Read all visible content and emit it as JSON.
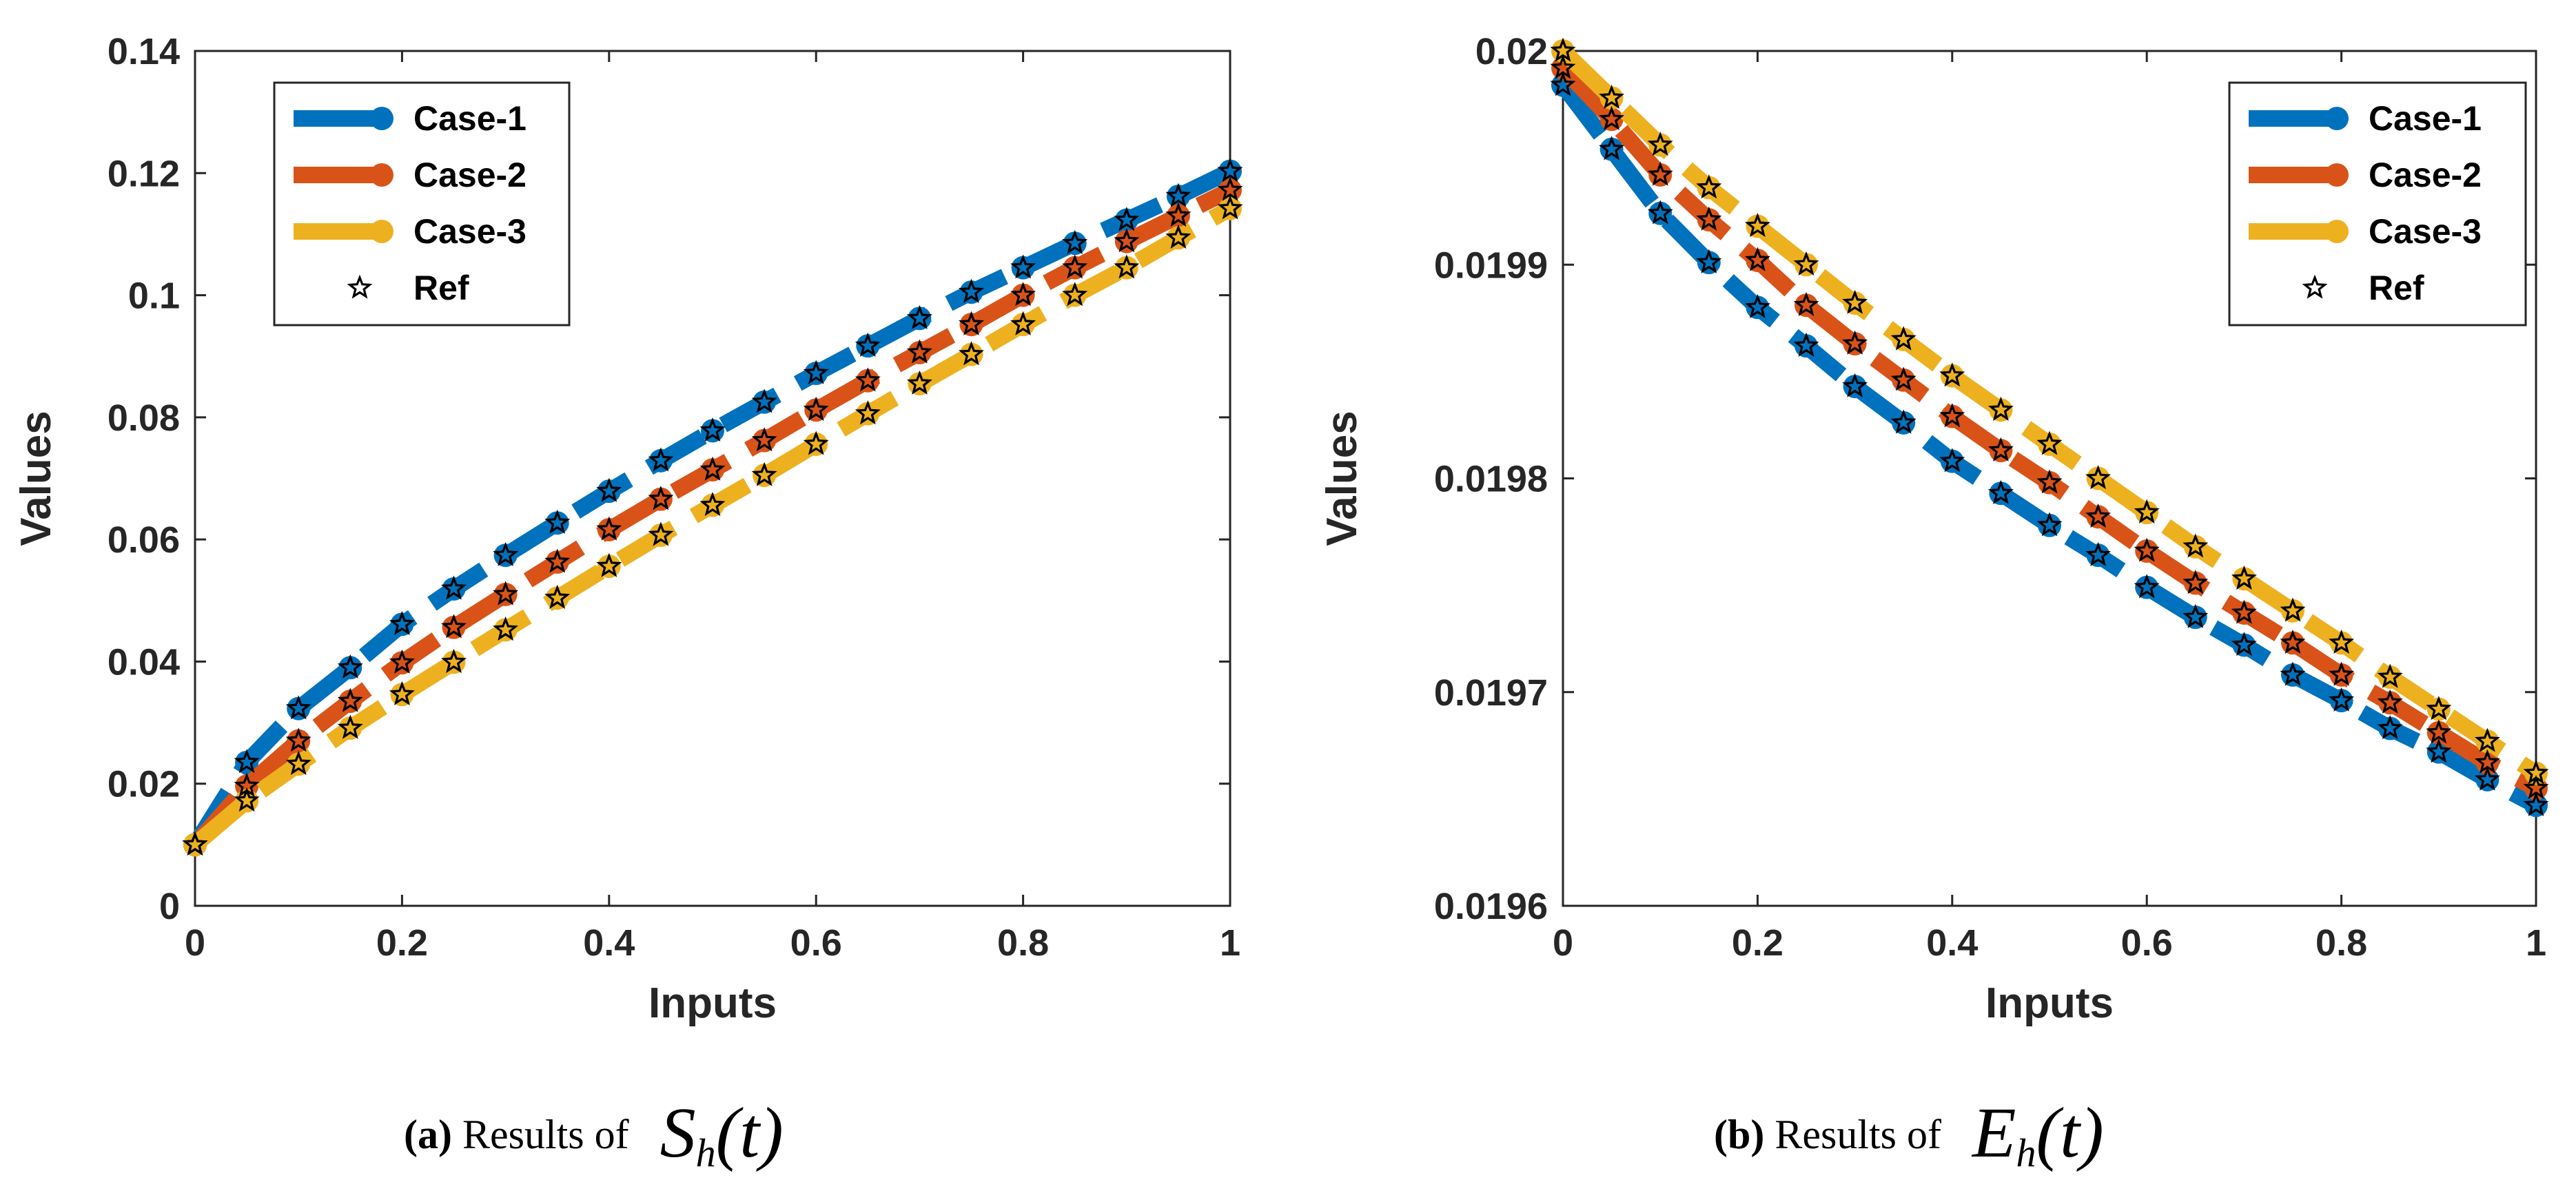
{
  "colors": {
    "case1": "#0072BD",
    "case2": "#D95319",
    "case3": "#EDB120",
    "ref": "#000000",
    "axis": "#262626"
  },
  "chart_data": [
    {
      "type": "line",
      "xlabel": "Inputs",
      "ylabel": "Values",
      "xlim": [
        0,
        1
      ],
      "ylim": [
        0,
        0.14
      ],
      "xticks": [
        "0",
        "0.2",
        "0.4",
        "0.6",
        "0.8",
        "1"
      ],
      "yticks": [
        "0",
        "0.02",
        "0.04",
        "0.06",
        "0.08",
        "0.1",
        "0.12",
        "0.14"
      ],
      "legend_position": "top-left",
      "legend": [
        "Case-1",
        "Case-2",
        "Case-3",
        "Ref"
      ],
      "x": [
        0,
        0.05,
        0.1,
        0.15,
        0.2,
        0.25,
        0.3,
        0.35,
        0.4,
        0.45,
        0.5,
        0.55,
        0.6,
        0.65,
        0.7,
        0.75,
        0.8,
        0.85,
        0.9,
        0.95,
        1
      ],
      "series": [
        {
          "name": "Case-1",
          "values": [
            0.01,
            0.0235,
            0.0323,
            0.039,
            0.0461,
            0.0519,
            0.0574,
            0.0627,
            0.0679,
            0.0729,
            0.0778,
            0.0825,
            0.0872,
            0.0917,
            0.0962,
            0.1005,
            0.1045,
            0.1085,
            0.1123,
            0.1162,
            0.1203
          ]
        },
        {
          "name": "Case-2",
          "values": [
            0.01,
            0.0196,
            0.027,
            0.0335,
            0.0398,
            0.0456,
            0.051,
            0.0563,
            0.0616,
            0.0666,
            0.0714,
            0.0762,
            0.0812,
            0.086,
            0.0906,
            0.0952,
            0.1,
            0.1045,
            0.1088,
            0.113,
            0.1172
          ]
        },
        {
          "name": "Case-3",
          "values": [
            0.01,
            0.0172,
            0.0232,
            0.0291,
            0.0346,
            0.0399,
            0.0452,
            0.0504,
            0.0556,
            0.0607,
            0.0656,
            0.0705,
            0.0756,
            0.0806,
            0.0855,
            0.0903,
            0.0952,
            0.1,
            0.1045,
            0.1094,
            0.1142
          ]
        },
        {
          "name": "Ref",
          "marker_only": true,
          "values_from": [
            "Case-1",
            "Case-2",
            "Case-3"
          ]
        }
      ],
      "caption": {
        "label": "(a)",
        "text": "Results of",
        "symbol": "S",
        "subscript": "h",
        "arg": "(t)"
      }
    },
    {
      "type": "line",
      "xlabel": "Inputs",
      "ylabel": "Values",
      "xlim": [
        0,
        1
      ],
      "ylim": [
        0.0196,
        0.02
      ],
      "xticks": [
        "0",
        "0.2",
        "0.4",
        "0.6",
        "0.8",
        "1"
      ],
      "yticks": [
        "0.0196",
        "0.0197",
        "0.0198",
        "0.0199",
        "0.02"
      ],
      "legend_position": "top-right",
      "legend": [
        "Case-1",
        "Case-2",
        "Case-3",
        "Ref"
      ],
      "x": [
        0,
        0.05,
        0.1,
        0.15,
        0.2,
        0.25,
        0.3,
        0.35,
        0.4,
        0.45,
        0.5,
        0.55,
        0.6,
        0.65,
        0.7,
        0.75,
        0.8,
        0.85,
        0.9,
        0.95,
        1
      ],
      "series": [
        {
          "name": "Case-1",
          "values": [
            0.019984,
            0.019954,
            0.019924,
            0.019901,
            0.01988,
            0.019862,
            0.019843,
            0.019826,
            0.019808,
            0.019793,
            0.019778,
            0.019764,
            0.019749,
            0.019735,
            0.019722,
            0.019708,
            0.019696,
            0.019683,
            0.019672,
            0.019659,
            0.019647
          ]
        },
        {
          "name": "Case-2",
          "values": [
            0.019992,
            0.019968,
            0.019942,
            0.019921,
            0.019902,
            0.019881,
            0.019863,
            0.019846,
            0.019829,
            0.019813,
            0.019798,
            0.019782,
            0.019766,
            0.019751,
            0.019737,
            0.019723,
            0.019708,
            0.019695,
            0.019681,
            0.019667,
            0.019655
          ]
        },
        {
          "name": "Case-3",
          "values": [
            0.02,
            0.019978,
            0.019956,
            0.019936,
            0.019918,
            0.0199,
            0.019882,
            0.019865,
            0.019848,
            0.019832,
            0.019816,
            0.0198,
            0.019784,
            0.019768,
            0.019753,
            0.019738,
            0.019723,
            0.019707,
            0.019692,
            0.019677,
            0.019662
          ]
        },
        {
          "name": "Ref",
          "marker_only": true,
          "values_from": [
            "Case-1",
            "Case-2",
            "Case-3"
          ]
        }
      ],
      "caption": {
        "label": "(b)",
        "text": "Results of",
        "symbol": "E",
        "subscript": "h",
        "arg": "(t)"
      }
    }
  ]
}
